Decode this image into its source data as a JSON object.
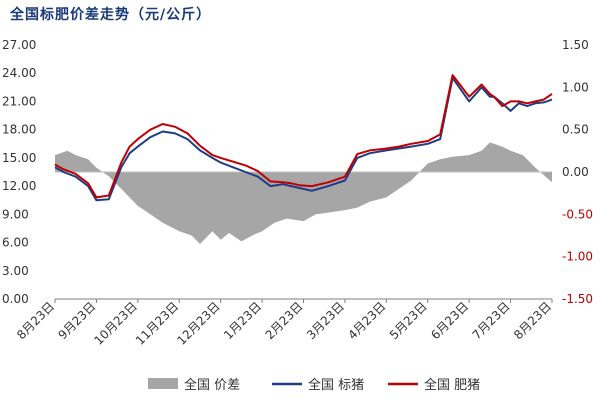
{
  "chart_data": {
    "type": "line",
    "title": "全国标肥价差走势（元/公斤）",
    "categories": [
      "8月23日",
      "9月23日",
      "10月23日",
      "11月23日",
      "12月23日",
      "1月23日",
      "2月23日",
      "3月23日",
      "4月23日",
      "5月23日",
      "6月23日",
      "7月23日",
      "8月23日"
    ],
    "left_axis": {
      "ylim": [
        0,
        27
      ],
      "ticks": [
        "0.00",
        "3.00",
        "6.00",
        "9.00",
        "12.00",
        "15.00",
        "18.00",
        "21.00",
        "24.00",
        "27.00"
      ]
    },
    "right_axis": {
      "ylim": [
        -1.5,
        1.5
      ],
      "ticks": [
        "-1.50",
        "-1.00",
        "-0.50",
        "0.00",
        "0.50",
        "1.00",
        "1.50"
      ]
    },
    "series": [
      {
        "name": "全国 价差",
        "type": "area",
        "axis": "right",
        "color": "#a6a6a6",
        "x": [
          0,
          0.3,
          0.5,
          0.8,
          1.0,
          1.3,
          1.6,
          2.0,
          2.3,
          2.6,
          3.0,
          3.3,
          3.5,
          3.8,
          4.0,
          4.2,
          4.5,
          4.8,
          5.0,
          5.3,
          5.6,
          6.0,
          6.3,
          6.6,
          7.0,
          7.3,
          7.6,
          8.0,
          8.3,
          8.6,
          9.0,
          9.3,
          9.6,
          10.0,
          10.3,
          10.5,
          10.8,
          11.0,
          11.3,
          11.6,
          12.0
        ],
        "values": [
          0.2,
          0.25,
          0.2,
          0.15,
          0.05,
          -0.05,
          -0.2,
          -0.4,
          -0.5,
          -0.6,
          -0.7,
          -0.75,
          -0.85,
          -0.7,
          -0.8,
          -0.72,
          -0.82,
          -0.74,
          -0.7,
          -0.6,
          -0.55,
          -0.58,
          -0.5,
          -0.48,
          -0.45,
          -0.42,
          -0.35,
          -0.3,
          -0.2,
          -0.1,
          0.1,
          0.15,
          0.18,
          0.2,
          0.25,
          0.35,
          0.3,
          0.25,
          0.2,
          0.05,
          -0.12
        ]
      },
      {
        "name": "全国 标猪",
        "type": "line",
        "axis": "left",
        "color": "#1f3c88",
        "x": [
          0,
          0.2,
          0.5,
          0.8,
          1.0,
          1.3,
          1.6,
          1.8,
          2.0,
          2.3,
          2.6,
          2.9,
          3.2,
          3.5,
          3.8,
          4.0,
          4.3,
          4.6,
          4.9,
          5.2,
          5.5,
          5.7,
          5.9,
          6.2,
          6.6,
          7.0,
          7.3,
          7.6,
          8.0,
          8.3,
          8.6,
          9.0,
          9.3,
          9.6,
          10.0,
          10.3,
          10.5,
          10.6,
          10.8,
          11.0,
          11.2,
          11.4,
          11.6,
          11.8,
          12.0
        ],
        "values": [
          14.0,
          13.5,
          13.0,
          12.0,
          10.5,
          10.6,
          14.0,
          15.5,
          16.2,
          17.2,
          17.8,
          17.6,
          17.0,
          15.8,
          15.0,
          14.5,
          14.0,
          13.5,
          13.0,
          12.0,
          12.2,
          12.0,
          11.8,
          11.5,
          12.0,
          12.6,
          15.0,
          15.5,
          15.8,
          16.0,
          16.2,
          16.5,
          17.0,
          23.5,
          21.0,
          22.5,
          21.5,
          21.5,
          20.8,
          20.0,
          20.8,
          20.5,
          20.8,
          20.9,
          21.2
        ]
      },
      {
        "name": "全国 肥猪",
        "type": "line",
        "axis": "left",
        "color": "#c00000",
        "x": [
          0,
          0.2,
          0.5,
          0.8,
          1.0,
          1.3,
          1.6,
          1.8,
          2.0,
          2.3,
          2.6,
          2.9,
          3.2,
          3.5,
          3.8,
          4.0,
          4.3,
          4.6,
          4.9,
          5.2,
          5.5,
          5.7,
          5.9,
          6.2,
          6.6,
          7.0,
          7.3,
          7.6,
          8.0,
          8.3,
          8.6,
          9.0,
          9.3,
          9.6,
          10.0,
          10.3,
          10.5,
          10.6,
          10.8,
          11.0,
          11.2,
          11.4,
          11.6,
          11.8,
          12.0
        ],
        "values": [
          14.3,
          13.8,
          13.3,
          12.3,
          10.8,
          11.0,
          14.5,
          16.2,
          17.0,
          18.0,
          18.6,
          18.3,
          17.6,
          16.3,
          15.3,
          15.0,
          14.6,
          14.2,
          13.6,
          12.5,
          12.4,
          12.3,
          12.1,
          12.0,
          12.4,
          13.0,
          15.4,
          15.8,
          16.0,
          16.2,
          16.5,
          16.8,
          17.5,
          23.8,
          21.5,
          22.8,
          21.8,
          21.5,
          20.5,
          21.0,
          21.0,
          20.8,
          21.0,
          21.2,
          21.8
        ]
      }
    ],
    "legend": {
      "position": "bottom",
      "items": [
        "全国 价差",
        "全国 标猪",
        "全国 肥猪"
      ]
    },
    "grid": false
  }
}
